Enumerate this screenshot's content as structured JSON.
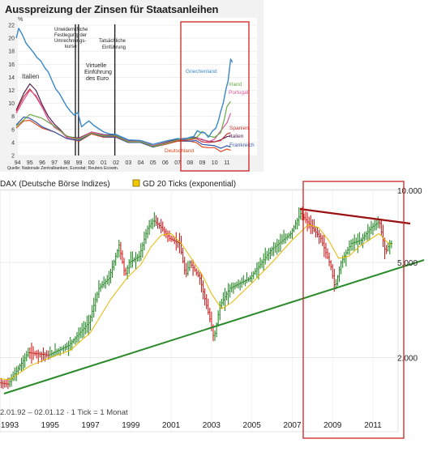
{
  "chart_data": [
    {
      "type": "line",
      "title": "Ausspreizung der Zinsen für Staatsanleihen",
      "y_unit": "%",
      "source": "Quelle: Nationale Zentralbanken; Eurostat; Reuters Ecowin.",
      "ylim": [
        2,
        22
      ],
      "y_ticks": [
        "2",
        "4",
        "6",
        "8",
        "10",
        "12",
        "14",
        "16",
        "18",
        "20",
        "22"
      ],
      "x_ticks": [
        "94",
        "95",
        "96",
        "97",
        "98",
        "99",
        "00",
        "01",
        "02",
        "03",
        "04",
        "05",
        "06",
        "07",
        "08",
        "09",
        "10",
        "11"
      ],
      "annotations": [
        "Unwiderrufliche Festlegung der Umrechnungs-kurse",
        "Virtuelle Einführung des Euro",
        "Tatsächliche Einführung"
      ],
      "series": [
        {
          "name": "Griechenland",
          "color": "#3a88c8",
          "label_year": 2010.0,
          "x": [
            1993.9,
            1994.1,
            1994.4,
            1994.7,
            1995.0,
            1995.3,
            1995.6,
            1995.9,
            1996.2,
            1996.5,
            1996.8,
            1997.1,
            1997.4,
            1997.7,
            1998.0,
            1998.3,
            1998.6,
            1998.9,
            1999.2,
            1999.5,
            1999.8,
            2000.2,
            2000.6,
            2001.0,
            2001.5,
            2002.0,
            2003.0,
            2004.0,
            2005.0,
            2006.0,
            2007.0,
            2007.5,
            2008.0,
            2008.3,
            2008.6,
            2008.9,
            2009.2,
            2009.5,
            2009.8,
            2010.1,
            2010.3,
            2010.5,
            2010.7,
            2010.9,
            2011.1,
            2011.3,
            2011.45
          ],
          "y": [
            20,
            21.5,
            20.5,
            19.2,
            18.5,
            17.8,
            17,
            16.5,
            15.5,
            14.8,
            13.5,
            12.2,
            11.5,
            10.5,
            9.5,
            8.8,
            8.2,
            8.6,
            6.4,
            6.9,
            7.3,
            6.6,
            6.1,
            5.6,
            5.3,
            5.2,
            4.4,
            4.3,
            3.7,
            4.2,
            4.6,
            4.5,
            4.8,
            4.9,
            5.8,
            5.5,
            5.5,
            4.8,
            5.7,
            6.2,
            7.3,
            8.8,
            10.0,
            12.0,
            13.5,
            16.8,
            16.3
          ]
        },
        {
          "name": "Irland",
          "color": "#6aaa44",
          "label_year": 2011.35,
          "x": [
            1993.9,
            1995.0,
            1996.0,
            1997.0,
            1998.0,
            1999.0,
            2000.0,
            2001.0,
            2002.0,
            2003.0,
            2004.0,
            2005.0,
            2006.0,
            2007.0,
            2008.0,
            2008.5,
            2009.0,
            2009.5,
            2010.0,
            2010.5,
            2010.8,
            2011.0,
            2011.3
          ],
          "y": [
            6.5,
            8.3,
            7.7,
            6.5,
            5.0,
            4.5,
            5.4,
            5.0,
            5.0,
            4.1,
            4.1,
            3.4,
            3.8,
            4.4,
            4.6,
            4.7,
            5.7,
            5.0,
            4.8,
            5.5,
            7.7,
            9.5,
            10.3
          ]
        },
        {
          "name": "Portugal",
          "color": "#e0559a",
          "label_year": 2011.35,
          "x": [
            1993.9,
            1994.5,
            1995.0,
            1995.5,
            1996.0,
            1996.5,
            1997.0,
            1997.5,
            1998.0,
            1999.0,
            2000.0,
            2001.0,
            2002.0,
            2003.0,
            2004.0,
            2005.0,
            2006.0,
            2007.0,
            2008.0,
            2008.5,
            2009.0,
            2009.5,
            2010.0,
            2010.5,
            2011.0,
            2011.3
          ],
          "y": [
            8.5,
            10.5,
            12.0,
            11.2,
            9.5,
            7.5,
            6.3,
            5.7,
            4.8,
            4.6,
            5.6,
            5.1,
            5.0,
            4.2,
            4.2,
            3.5,
            3.9,
            4.4,
            4.6,
            4.7,
            4.5,
            4.1,
            4.5,
            5.8,
            7.0,
            8.5
          ]
        },
        {
          "name": "Spanien",
          "color": "#cc3333",
          "label_year": 2011.3,
          "x": [
            1993.9,
            1994.5,
            1995.0,
            1995.5,
            1996.0,
            1996.5,
            1997.0,
            1997.5,
            1998.0,
            1999.0,
            2000.0,
            2001.0,
            2002.0,
            2003.0,
            2004.0,
            2005.0,
            2006.0,
            2007.0,
            2008.0,
            2008.5,
            2009.0,
            2009.5,
            2010.0,
            2010.5,
            2011.0,
            2011.3
          ],
          "y": [
            8.8,
            11.0,
            12.2,
            11.0,
            9.4,
            7.5,
            6.4,
            5.8,
            4.8,
            4.5,
            5.5,
            5.1,
            4.9,
            4.1,
            4.1,
            3.4,
            3.8,
            4.3,
            4.4,
            4.6,
            4.1,
            4.0,
            4.1,
            4.3,
            5.3,
            5.5
          ]
        },
        {
          "name": "Italien",
          "color": "#552255",
          "label_year": 2011.3,
          "x": [
            1993.9,
            1994.5,
            1995.0,
            1995.5,
            1996.0,
            1996.5,
            1997.0,
            1997.5,
            1998.0,
            1999.0,
            2000.0,
            2001.0,
            2002.0,
            2003.0,
            2004.0,
            2005.0,
            2006.0,
            2007.0,
            2008.0,
            2008.5,
            2009.0,
            2009.5,
            2010.0,
            2010.5,
            2011.0,
            2011.3
          ],
          "y": [
            9.0,
            11.5,
            13.0,
            12.0,
            9.8,
            8.0,
            6.8,
            5.9,
            4.9,
            4.7,
            5.6,
            5.2,
            5.1,
            4.3,
            4.2,
            3.5,
            4.0,
            4.5,
            4.7,
            4.8,
            4.4,
            4.2,
            4.1,
            4.4,
            4.9,
            5.0
          ]
        },
        {
          "name": "Frankreich",
          "color": "#3355aa",
          "label_year": 2011.3,
          "x": [
            1993.9,
            1994.5,
            1995.0,
            1995.5,
            1996.0,
            1996.5,
            1997.0,
            1998.0,
            1999.0,
            2000.0,
            2001.0,
            2002.0,
            2003.0,
            2004.0,
            2005.0,
            2006.0,
            2007.0,
            2008.0,
            2008.5,
            2009.0,
            2009.5,
            2010.0,
            2010.5,
            2011.0,
            2011.3
          ],
          "y": [
            6.7,
            7.9,
            7.7,
            7.1,
            6.4,
            6.0,
            5.6,
            4.6,
            4.3,
            5.4,
            4.9,
            4.8,
            4.0,
            4.0,
            3.3,
            3.8,
            4.3,
            4.2,
            4.3,
            3.7,
            3.6,
            3.5,
            3.1,
            3.5,
            3.3
          ]
        },
        {
          "name": "Deutschland",
          "color": "#e04a1c",
          "label_year": 2007.9,
          "x": [
            1993.9,
            1994.5,
            1995.0,
            1995.5,
            1996.0,
            1996.5,
            1997.0,
            1998.0,
            1999.0,
            2000.0,
            2001.0,
            2002.0,
            2003.0,
            2004.0,
            2005.0,
            2006.0,
            2007.0,
            2008.0,
            2008.5,
            2009.0,
            2009.5,
            2010.0,
            2010.5,
            2011.0,
            2011.3
          ],
          "y": [
            6.2,
            7.3,
            7.4,
            6.8,
            6.2,
            5.9,
            5.6,
            4.6,
            4.2,
            5.3,
            4.8,
            4.8,
            4.0,
            4.0,
            3.3,
            3.7,
            4.2,
            4.2,
            4.0,
            3.3,
            3.2,
            3.2,
            2.6,
            3.0,
            2.8
          ]
        }
      ]
    },
    {
      "type": "line",
      "title": "DAX (Deutsche Börse Indizes)",
      "legend": [
        "GD 20 Ticks (exponential)"
      ],
      "footer": "2.01.92 – 02.01.12 · 1 Tick = 1 Monat",
      "scale": "log",
      "ylim": [
        1200,
        10500
      ],
      "y_ticks": [
        "10.000",
        "5.000",
        "2.000"
      ],
      "x_ticks": [
        "1993",
        "1995",
        "1997",
        "1999",
        "2001",
        "2003",
        "2005",
        "2007",
        "2009",
        "2011"
      ],
      "colors": {
        "up": "#2a8a2a",
        "down": "#cc2222",
        "ma": "#e8b800",
        "support": "#2a8a2a",
        "resistance": "#991111",
        "box": "#cc2222"
      },
      "series": [
        {
          "name": "DAX",
          "x": [
            1992.0,
            1993.0,
            1994.0,
            1995.0,
            1996.0,
            1997.0,
            1997.5,
            1998.0,
            1998.5,
            1998.8,
            1999.0,
            1999.5,
            1999.9,
            2000.2,
            2000.6,
            2001.0,
            2001.5,
            2001.8,
            2002.0,
            2002.5,
            2003.0,
            2003.2,
            2003.5,
            2004.0,
            2005.0,
            2006.0,
            2007.0,
            2007.5,
            2008.0,
            2008.5,
            2009.0,
            2009.2,
            2009.5,
            2010.0,
            2010.5,
            2011.0,
            2011.4,
            2011.7,
            2011.9
          ],
          "y": [
            1600,
            1550,
            2100,
            2050,
            2250,
            2800,
            3900,
            4300,
            5900,
            4400,
            5000,
            5300,
            6900,
            7500,
            7000,
            6300,
            6000,
            4400,
            5000,
            4300,
            2900,
            2400,
            3300,
            3900,
            4300,
            5600,
            6600,
            8000,
            7100,
            6300,
            4800,
            3900,
            5000,
            6000,
            6200,
            7000,
            7400,
            5500,
            6000
          ]
        },
        {
          "name": "GD 20 Ticks (exponential)",
          "x": [
            1992.0,
            1993.0,
            1994.0,
            1995.0,
            1996.0,
            1997.0,
            1998.0,
            1998.8,
            1999.5,
            2000.0,
            2000.5,
            2001.0,
            2001.5,
            2002.0,
            2002.5,
            2003.0,
            2003.5,
            2004.0,
            2005.0,
            2006.0,
            2007.0,
            2007.8,
            2008.3,
            2008.8,
            2009.3,
            2009.8,
            2010.3,
            2010.8,
            2011.3,
            2011.6,
            2011.9
          ],
          "y": [
            1650,
            1620,
            1850,
            2000,
            2150,
            2550,
            3500,
            4300,
            4900,
            5800,
            6500,
            6600,
            6000,
            5200,
            4500,
            3700,
            3200,
            3400,
            4100,
            5000,
            6200,
            7200,
            7000,
            6200,
            5200,
            5300,
            5800,
            6200,
            6600,
            6200,
            5900
          ]
        }
      ]
    }
  ]
}
